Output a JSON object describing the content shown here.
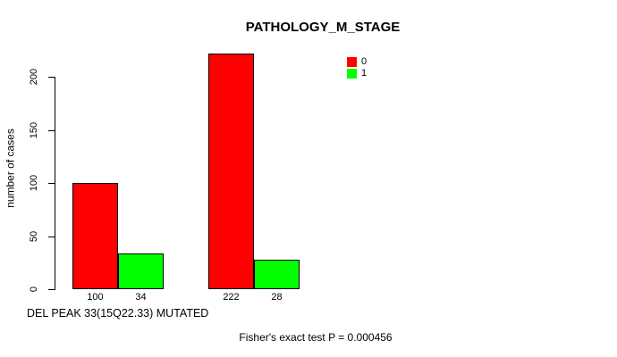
{
  "chart_data": {
    "type": "bar",
    "title": "PATHOLOGY_M_STAGE",
    "xlabel": "DEL PEAK 33(15Q22.33) MUTATED",
    "ylabel": "number of cases",
    "annotation": "Fisher's exact test P = 0.000456",
    "ylim": [
      0,
      230
    ],
    "yticks": [
      0,
      50,
      100,
      150,
      200
    ],
    "grid": false,
    "legend_position": "upper-right",
    "categories": [
      "",
      ""
    ],
    "series": [
      {
        "name": "0",
        "color": "#ff0000",
        "values": [
          100,
          222
        ]
      },
      {
        "name": "1",
        "color": "#00ff00",
        "values": [
          34,
          28
        ]
      }
    ],
    "bar_value_labels": [
      [
        "100",
        "34"
      ],
      [
        "222",
        "28"
      ]
    ],
    "colors": {
      "axis": "#000000",
      "bar_border": "#000000",
      "background": "#ffffff"
    }
  }
}
